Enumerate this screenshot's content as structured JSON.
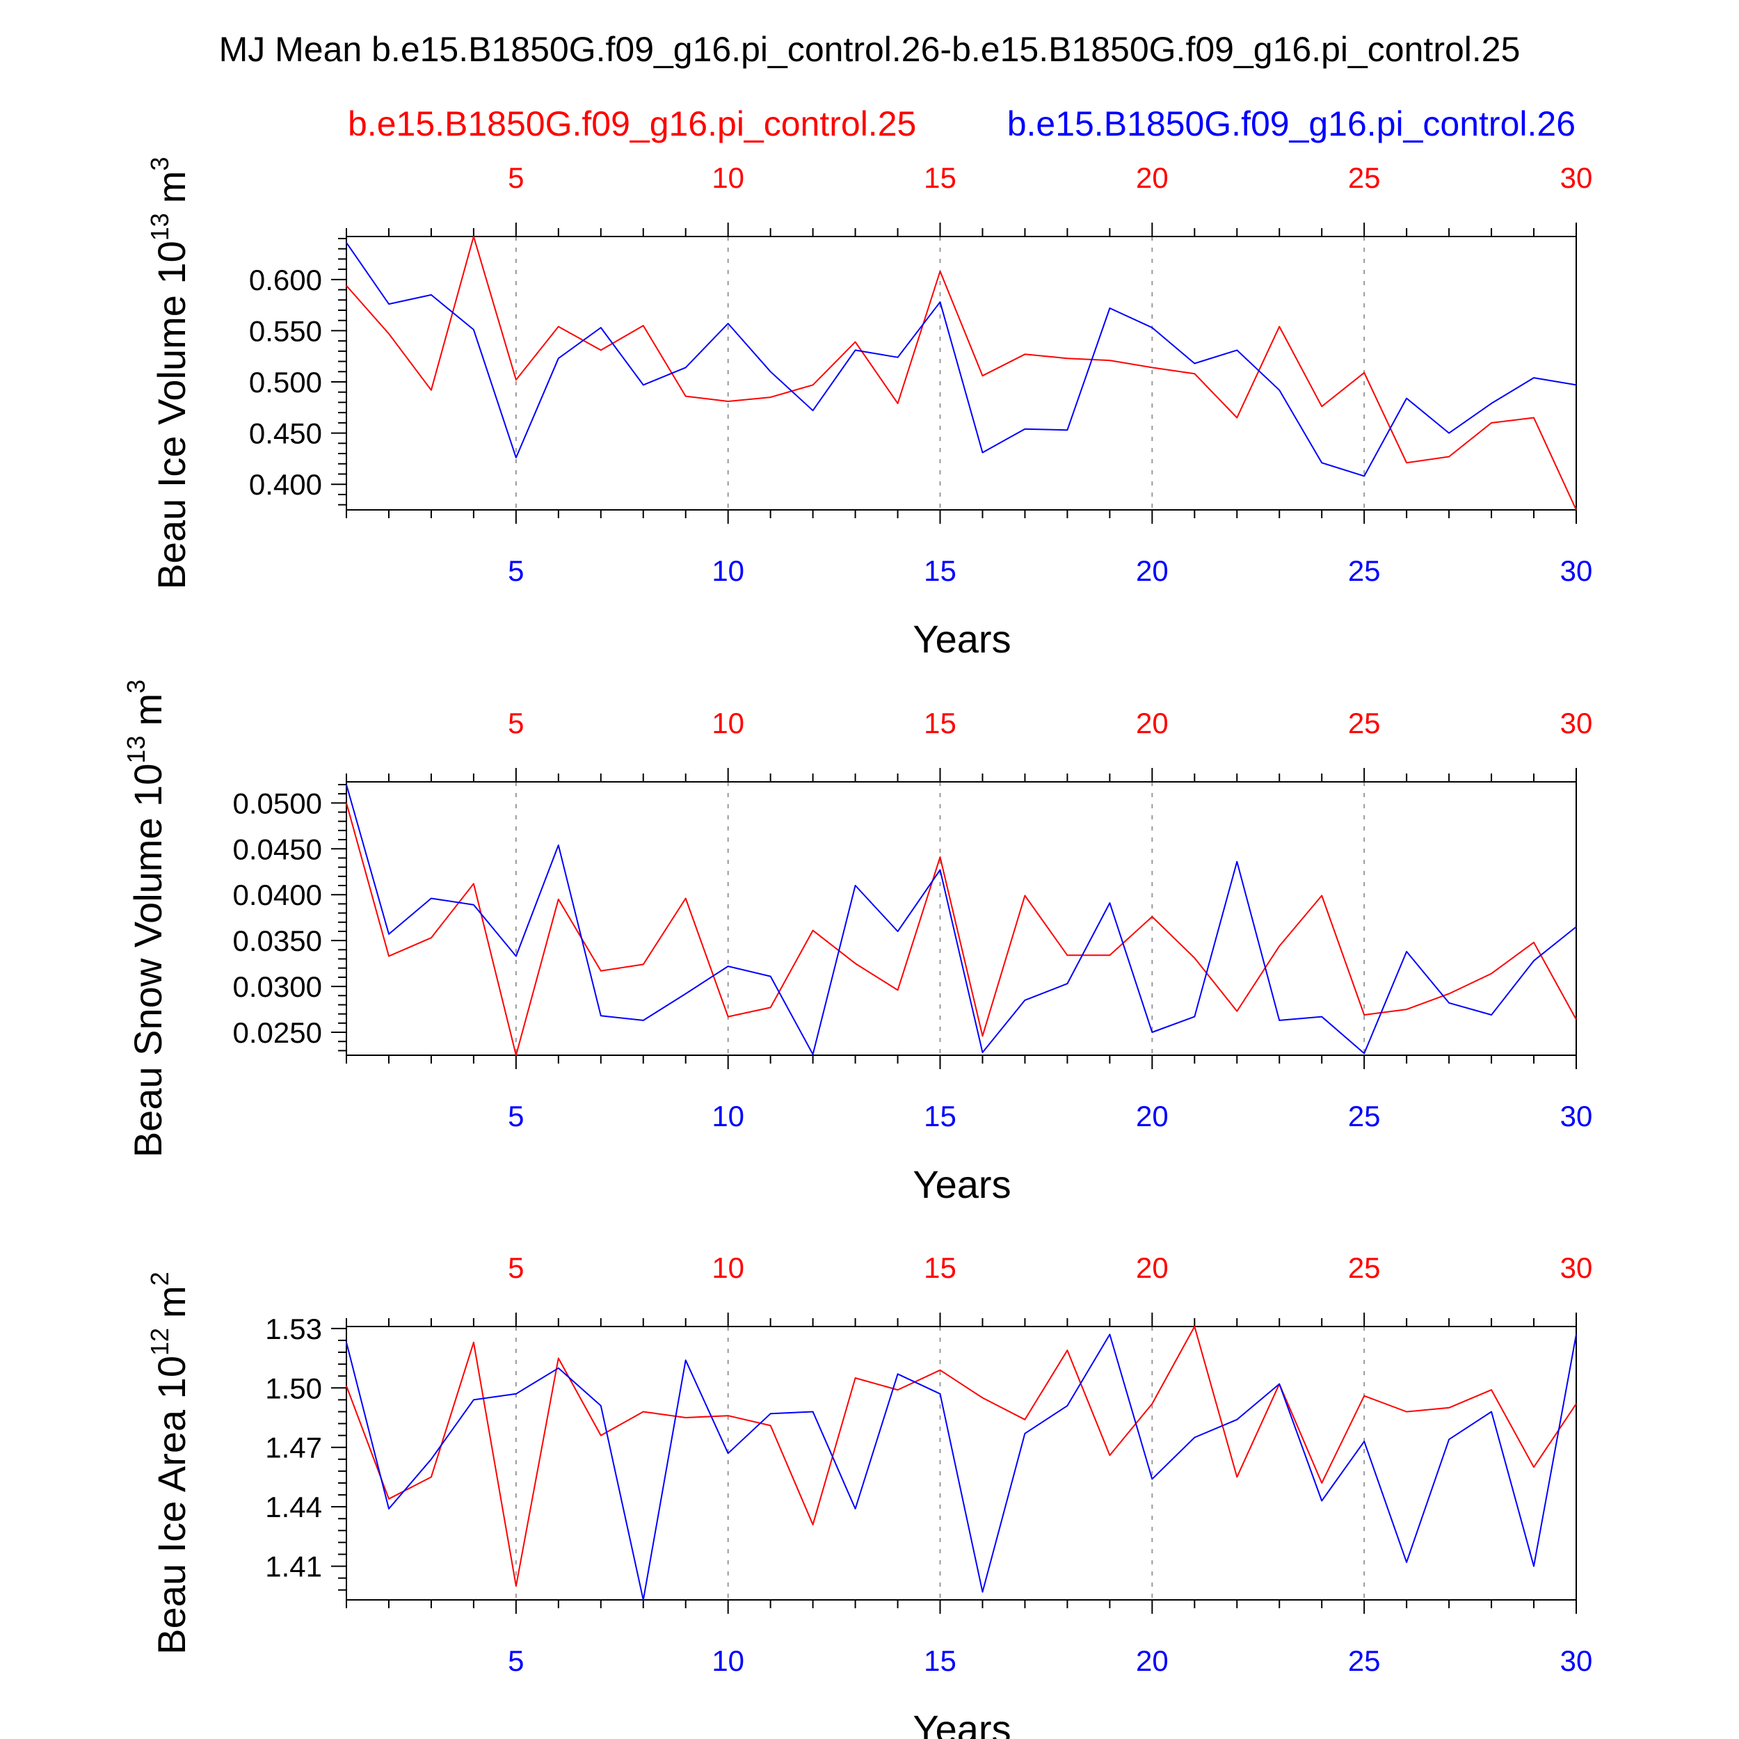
{
  "page": {
    "title": "MJ Mean b.e15.B1850G.f09_g16.pi_control.26-b.e15.B1850G.f09_g16.pi_control.25",
    "case_a_label": "b.e15.B1850G.f09_g16.pi_control.25",
    "case_b_label": "b.e15.B1850G.f09_g16.pi_control.26"
  },
  "colors": {
    "case_a": "#ff0000",
    "case_b": "#0000ff",
    "axis": "#000000",
    "grid": "#999999"
  },
  "chart_data": [
    {
      "type": "line",
      "ylabel": "Beau Ice Volume 10",
      "ylabel_exp": "13",
      "ylabel_unit": "m",
      "ylabel_unit_exp": "3",
      "xlabel": "Years",
      "xlim": [
        1,
        30
      ],
      "ylim": [
        0.375,
        0.642
      ],
      "xticks": [
        5,
        10,
        15,
        20,
        25,
        30
      ],
      "yticks": [
        0.4,
        0.45,
        0.5,
        0.55,
        0.6
      ],
      "ytick_labels": [
        "0.400",
        "0.450",
        "0.500",
        "0.550",
        "0.600"
      ],
      "yminor_step": 0.01,
      "x": [
        1,
        2,
        3,
        4,
        5,
        6,
        7,
        8,
        9,
        10,
        11,
        12,
        13,
        14,
        15,
        16,
        17,
        18,
        19,
        20,
        21,
        22,
        23,
        24,
        25,
        26,
        27,
        28,
        29,
        30
      ],
      "series": [
        {
          "name": "b.e15.B1850G.f09_g16.pi_control.25",
          "color": "#ff0000",
          "values": [
            0.594,
            0.547,
            0.492,
            0.642,
            0.502,
            0.554,
            0.531,
            0.555,
            0.486,
            0.481,
            0.485,
            0.497,
            0.539,
            0.479,
            0.608,
            0.506,
            0.527,
            0.523,
            0.521,
            0.514,
            0.508,
            0.465,
            0.554,
            0.476,
            0.509,
            0.421,
            0.427,
            0.46,
            0.465,
            0.375
          ]
        },
        {
          "name": "b.e15.B1850G.f09_g16.pi_control.26",
          "color": "#0000ff",
          "values": [
            0.636,
            0.576,
            0.585,
            0.551,
            0.426,
            0.523,
            0.553,
            0.497,
            0.514,
            0.557,
            0.51,
            0.472,
            0.531,
            0.524,
            0.578,
            0.431,
            0.454,
            0.453,
            0.572,
            0.553,
            0.518,
            0.531,
            0.492,
            0.421,
            0.408,
            0.484,
            0.45,
            0.479,
            0.504,
            0.497
          ]
        }
      ]
    },
    {
      "type": "line",
      "ylabel": "Beau Snow Volume 10",
      "ylabel_exp": "13",
      "ylabel_unit": "m",
      "ylabel_unit_exp": "3",
      "xlabel": "Years",
      "xlim": [
        1,
        30
      ],
      "ylim": [
        0.0225,
        0.0523
      ],
      "xticks": [
        5,
        10,
        15,
        20,
        25,
        30
      ],
      "yticks": [
        0.025,
        0.03,
        0.035,
        0.04,
        0.045,
        0.05
      ],
      "ytick_labels": [
        "0.0250",
        "0.0300",
        "0.0350",
        "0.0400",
        "0.0450",
        "0.0500"
      ],
      "yminor_step": 0.001,
      "x": [
        1,
        2,
        3,
        4,
        5,
        6,
        7,
        8,
        9,
        10,
        11,
        12,
        13,
        14,
        15,
        16,
        17,
        18,
        19,
        20,
        21,
        22,
        23,
        24,
        25,
        26,
        27,
        28,
        29,
        30
      ],
      "series": [
        {
          "name": "b.e15.B1850G.f09_g16.pi_control.25",
          "color": "#ff0000",
          "values": [
            0.05,
            0.0333,
            0.0353,
            0.0412,
            0.0225,
            0.0395,
            0.0317,
            0.0324,
            0.0396,
            0.0267,
            0.0277,
            0.0361,
            0.0325,
            0.0296,
            0.0441,
            0.0246,
            0.0399,
            0.0334,
            0.0334,
            0.0376,
            0.0331,
            0.0273,
            0.0344,
            0.0399,
            0.0269,
            0.0275,
            0.0292,
            0.0314,
            0.0348,
            0.0264
          ]
        },
        {
          "name": "b.e15.B1850G.f09_g16.pi_control.26",
          "color": "#0000ff",
          "values": [
            0.052,
            0.0357,
            0.0396,
            0.0389,
            0.0333,
            0.0454,
            0.0268,
            0.0263,
            0.0292,
            0.0322,
            0.0311,
            0.0226,
            0.041,
            0.036,
            0.0427,
            0.0228,
            0.0285,
            0.0303,
            0.0391,
            0.025,
            0.0267,
            0.0436,
            0.0263,
            0.0267,
            0.0227,
            0.0338,
            0.0282,
            0.0269,
            0.0328,
            0.0365
          ]
        }
      ]
    },
    {
      "type": "line",
      "ylabel": "Beau Ice Area 10",
      "ylabel_exp": "12",
      "ylabel_unit": "m",
      "ylabel_unit_exp": "2",
      "xlabel": "Years",
      "xlim": [
        1,
        30
      ],
      "ylim": [
        1.393,
        1.531
      ],
      "xticks": [
        5,
        10,
        15,
        20,
        25,
        30
      ],
      "yticks": [
        1.41,
        1.44,
        1.47,
        1.5,
        1.53
      ],
      "ytick_labels": [
        "1.41",
        "1.44",
        "1.47",
        "1.50",
        "1.53"
      ],
      "yminor_step": 0.006,
      "x": [
        1,
        2,
        3,
        4,
        5,
        6,
        7,
        8,
        9,
        10,
        11,
        12,
        13,
        14,
        15,
        16,
        17,
        18,
        19,
        20,
        21,
        22,
        23,
        24,
        25,
        26,
        27,
        28,
        29,
        30
      ],
      "series": [
        {
          "name": "b.e15.B1850G.f09_g16.pi_control.25",
          "color": "#ff0000",
          "values": [
            1.501,
            1.444,
            1.455,
            1.523,
            1.4,
            1.515,
            1.476,
            1.488,
            1.485,
            1.486,
            1.481,
            1.431,
            1.505,
            1.499,
            1.509,
            1.495,
            1.484,
            1.519,
            1.466,
            1.492,
            1.531,
            1.455,
            1.502,
            1.452,
            1.496,
            1.488,
            1.49,
            1.499,
            1.46,
            1.492
          ]
        },
        {
          "name": "b.e15.B1850G.f09_g16.pi_control.26",
          "color": "#0000ff",
          "values": [
            1.523,
            1.439,
            1.464,
            1.494,
            1.497,
            1.51,
            1.491,
            1.393,
            1.514,
            1.467,
            1.487,
            1.488,
            1.439,
            1.507,
            1.497,
            1.397,
            1.477,
            1.491,
            1.527,
            1.454,
            1.475,
            1.484,
            1.502,
            1.443,
            1.473,
            1.412,
            1.474,
            1.488,
            1.41,
            1.527
          ]
        }
      ]
    }
  ]
}
